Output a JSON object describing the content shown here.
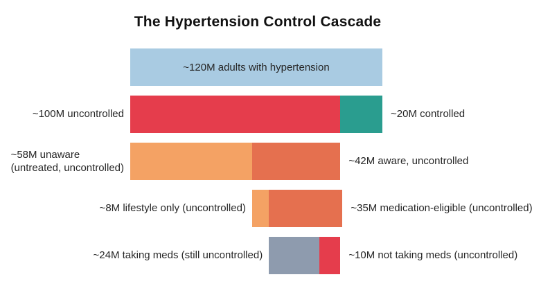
{
  "colors": {
    "light_blue": "#A9CBE2",
    "red": "#E53D4C",
    "teal": "#2A9D8F",
    "light_orange": "#F4A264",
    "dark_orange": "#E5704F",
    "gray_blue": "#8E9BAE",
    "label_text": "#262626",
    "title_text": "#111111",
    "background": "#FFFFFF"
  },
  "chart_data": {
    "type": "bar",
    "orientation": "horizontal",
    "title": "The Hypertension Control Cascade",
    "unit": "millions of adults (M)",
    "axis_total": 120,
    "grid": false,
    "legend": "none",
    "rows": [
      {
        "name": "adults-with-hypertension",
        "offset": 0,
        "left_label": "",
        "right_label": "",
        "segments": [
          {
            "label": "~120M adults with hypertension",
            "value": 120,
            "color": "light_blue",
            "label_inside": true
          }
        ]
      },
      {
        "name": "uncontrolled-vs-controlled",
        "offset": 0,
        "left_label": "~100M uncontrolled",
        "right_label": "~20M controlled",
        "segments": [
          {
            "label": "~100M uncontrolled",
            "value": 100,
            "color": "red",
            "label_inside": false
          },
          {
            "label": "~20M controlled",
            "value": 20,
            "color": "teal",
            "label_inside": false
          }
        ]
      },
      {
        "name": "unaware-vs-aware",
        "offset": 0,
        "left_label": "~58M unaware\n(untreated, uncontrolled)",
        "right_label": "~42M aware, uncontrolled",
        "segments": [
          {
            "label": "~58M unaware (untreated, uncontrolled)",
            "value": 58,
            "color": "light_orange",
            "label_inside": false
          },
          {
            "label": "~42M aware, uncontrolled",
            "value": 42,
            "color": "dark_orange",
            "label_inside": false
          }
        ]
      },
      {
        "name": "lifestyle-vs-medication-eligible",
        "offset": 58,
        "left_label": "~8M lifestyle only (uncontrolled)",
        "right_label": "~35M medication-eligible (uncontrolled)",
        "segments": [
          {
            "label": "~8M lifestyle only (uncontrolled)",
            "value": 8,
            "color": "light_orange",
            "label_inside": false
          },
          {
            "label": "~35M medication-eligible (uncontrolled)",
            "value": 35,
            "color": "dark_orange",
            "label_inside": false
          }
        ]
      },
      {
        "name": "taking-meds-vs-not",
        "offset": 66,
        "left_label": "~24M taking meds (still uncontrolled)",
        "right_label": "~10M not taking meds (uncontrolled)",
        "segments": [
          {
            "label": "~24M taking meds (still uncontrolled)",
            "value": 24,
            "color": "gray_blue",
            "label_inside": false
          },
          {
            "label": "~10M not taking meds (uncontrolled)",
            "value": 10,
            "color": "red",
            "label_inside": false
          }
        ]
      }
    ]
  }
}
